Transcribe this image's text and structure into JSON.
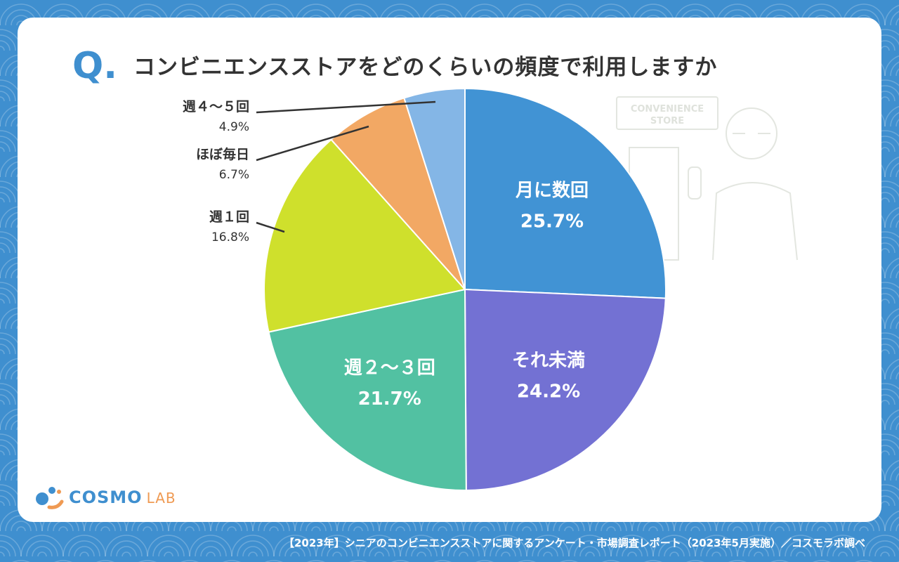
{
  "question_mark": "Q.",
  "title": "コンビニエンスストアをどのくらいの頻度で利用しますか",
  "logo": {
    "name": "COSMO",
    "suffix": "LAB"
  },
  "illustration": {
    "sign_line1": "CONVENIENCE",
    "sign_line2": "STORE"
  },
  "footer": "【2023年】シニアのコンビニエンスストアに関するアンケート・市場調査レポート（2023年5月実施）／コスモラボ調べ",
  "colors": {
    "background": "#3f8fcf",
    "card": "#ffffff",
    "accent": "#3f8fcf",
    "text": "#333333"
  },
  "chart_data": {
    "type": "pie",
    "unit": "%",
    "slices": [
      {
        "label": "月に数回",
        "value": 25.7,
        "display": "25.7%",
        "color": "#4193d4",
        "label_mode": "inside"
      },
      {
        "label": "それ未満",
        "value": 24.2,
        "display": "24.2%",
        "color": "#7371d3",
        "label_mode": "inside"
      },
      {
        "label": "週２～３回",
        "value": 21.7,
        "display": "21.7%",
        "color": "#52c1a2",
        "label_mode": "inside"
      },
      {
        "label": "週１回",
        "value": 16.8,
        "display": "16.8%",
        "color": "#cfe02c",
        "label_mode": "outside"
      },
      {
        "label": "ほぼ毎日",
        "value": 6.7,
        "display": "6.7%",
        "color": "#f2a864",
        "label_mode": "outside"
      },
      {
        "label": "週４～５回",
        "value": 4.9,
        "display": "4.9%",
        "color": "#84b6e6",
        "label_mode": "outside"
      }
    ]
  }
}
